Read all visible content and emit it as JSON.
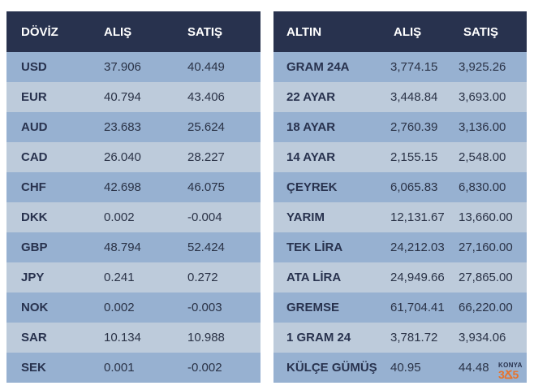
{
  "doviz": {
    "headers": [
      "DÖVİZ",
      "ALIŞ",
      "SATIŞ"
    ],
    "rows": [
      {
        "code": "USD",
        "alis": "37.906",
        "satis": "40.449"
      },
      {
        "code": "EUR",
        "alis": "40.794",
        "satis": "43.406"
      },
      {
        "code": "AUD",
        "alis": "23.683",
        "satis": "25.624"
      },
      {
        "code": "CAD",
        "alis": "26.040",
        "satis": "28.227"
      },
      {
        "code": "CHF",
        "alis": "42.698",
        "satis": "46.075"
      },
      {
        "code": "DKK",
        "alis": "0.002",
        "satis": "-0.004"
      },
      {
        "code": "GBP",
        "alis": "48.794",
        "satis": "52.424"
      },
      {
        "code": "JPY",
        "alis": "0.241",
        "satis": "0.272"
      },
      {
        "code": "NOK",
        "alis": "0.002",
        "satis": "-0.003"
      },
      {
        "code": "SAR",
        "alis": "10.134",
        "satis": "10.988"
      },
      {
        "code": "SEK",
        "alis": "0.001",
        "satis": "-0.002"
      }
    ]
  },
  "altin": {
    "headers": [
      "ALTIN",
      "ALIŞ",
      "SATIŞ"
    ],
    "rows": [
      {
        "code": "GRAM 24A",
        "alis": "3,774.15",
        "satis": "3,925.26"
      },
      {
        "code": "22 AYAR",
        "alis": "3,448.84",
        "satis": "3,693.00"
      },
      {
        "code": "18 AYAR",
        "alis": "2,760.39",
        "satis": "3,136.00"
      },
      {
        "code": "14 AYAR",
        "alis": "2,155.15",
        "satis": "2,548.00"
      },
      {
        "code": "ÇEYREK",
        "alis": "6,065.83",
        "satis": "6,830.00"
      },
      {
        "code": "YARIM",
        "alis": "12,131.67",
        "satis": "13,660.00"
      },
      {
        "code": "TEK LİRA",
        "alis": "24,212.03",
        "satis": "27,160.00"
      },
      {
        "code": "ATA LİRA",
        "alis": "24,949.66",
        "satis": "27,865.00"
      },
      {
        "code": "GREMSE",
        "alis": "61,704.41",
        "satis": "66,220.00"
      },
      {
        "code": "1 GRAM 24",
        "alis": "3,781.72",
        "satis": "3,934.06"
      },
      {
        "code": "KÜLÇE GÜMÜŞ",
        "alis": "40.95",
        "satis": "44.48"
      }
    ]
  },
  "logo": {
    "line1": "KONYA",
    "line2": "3Ճ5"
  },
  "colors": {
    "header": "#28324e",
    "row_dark": "#97b1d1",
    "row_light": "#bdcbdb",
    "accent": "#e8732a"
  }
}
